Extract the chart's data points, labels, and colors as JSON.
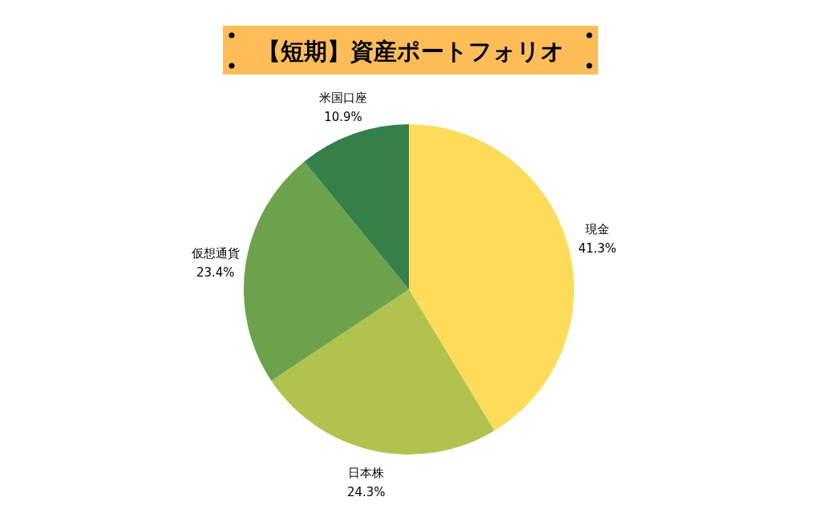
{
  "chart_data": {
    "type": "pie",
    "title": "【短期】資産ポートフォリオ",
    "categories": [
      "現金",
      "日本株",
      "仮想通貨",
      "米国口座"
    ],
    "values": [
      41.3,
      24.3,
      23.4,
      10.9
    ],
    "value_labels": [
      "41.3%",
      "24.3%",
      "23.4%",
      "10.9%"
    ],
    "colors": [
      "#fddc5a",
      "#b2c24f",
      "#6ba24b",
      "#357f4b"
    ],
    "legend": false
  }
}
